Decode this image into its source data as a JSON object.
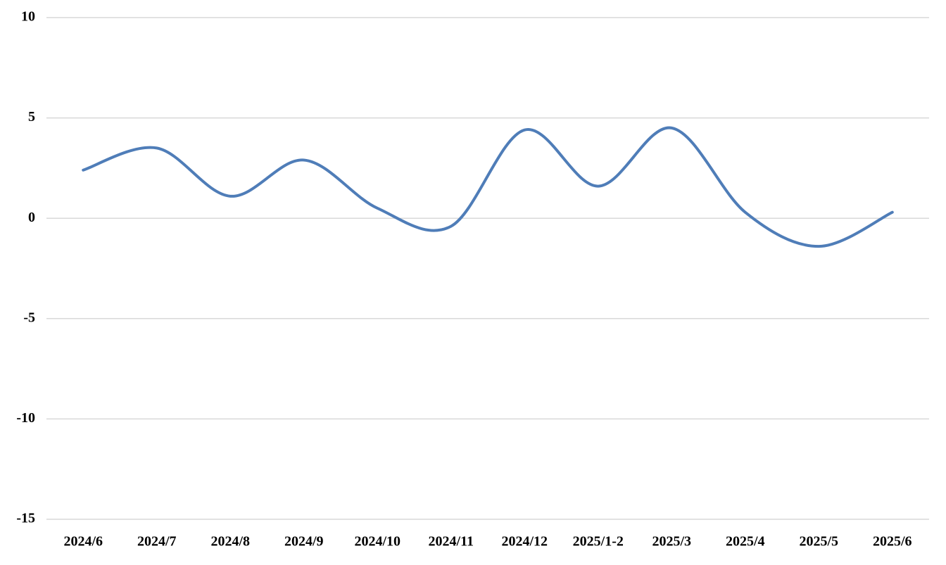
{
  "chart_data": {
    "type": "line",
    "categories": [
      "2024/6",
      "2024/7",
      "2024/8",
      "2024/9",
      "2024/10",
      "2024/11",
      "2024/12",
      "2025/1-2",
      "2025/3",
      "2025/4",
      "2025/5",
      "2025/6"
    ],
    "values": [
      2.4,
      3.5,
      1.1,
      2.9,
      0.5,
      -0.4,
      4.4,
      1.6,
      4.5,
      0.3,
      -1.4,
      0.3
    ],
    "color": "#4f7db8",
    "ylim": [
      -15,
      10
    ],
    "yticks": [
      -15,
      -10,
      -5,
      0,
      5,
      10
    ],
    "grid": true,
    "smooth": true
  }
}
